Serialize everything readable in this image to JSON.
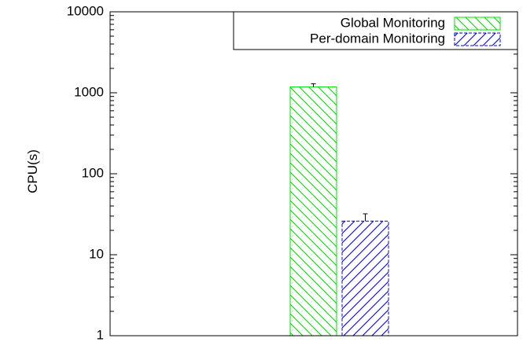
{
  "chart_data": {
    "type": "bar",
    "title": "",
    "xlabel": "",
    "ylabel": "CPU(s)",
    "y_scale": "log",
    "ylim": [
      1,
      10000
    ],
    "yticks": [
      {
        "value": 1,
        "label": "1"
      },
      {
        "value": 10,
        "label": "10"
      },
      {
        "value": 100,
        "label": "100"
      },
      {
        "value": 1000,
        "label": "1000"
      },
      {
        "value": 10000,
        "label": "10000"
      }
    ],
    "grid": false,
    "legend_position": "top-right",
    "series": [
      {
        "name": "Global Monitoring",
        "value": 1180,
        "error_upper": 1290,
        "color": "#00dd00",
        "hatch": "backslash"
      },
      {
        "name": "Per-domain Monitoring",
        "value": 26,
        "error_upper": 32,
        "color": "#0000dd",
        "hatch": "slash"
      }
    ]
  }
}
